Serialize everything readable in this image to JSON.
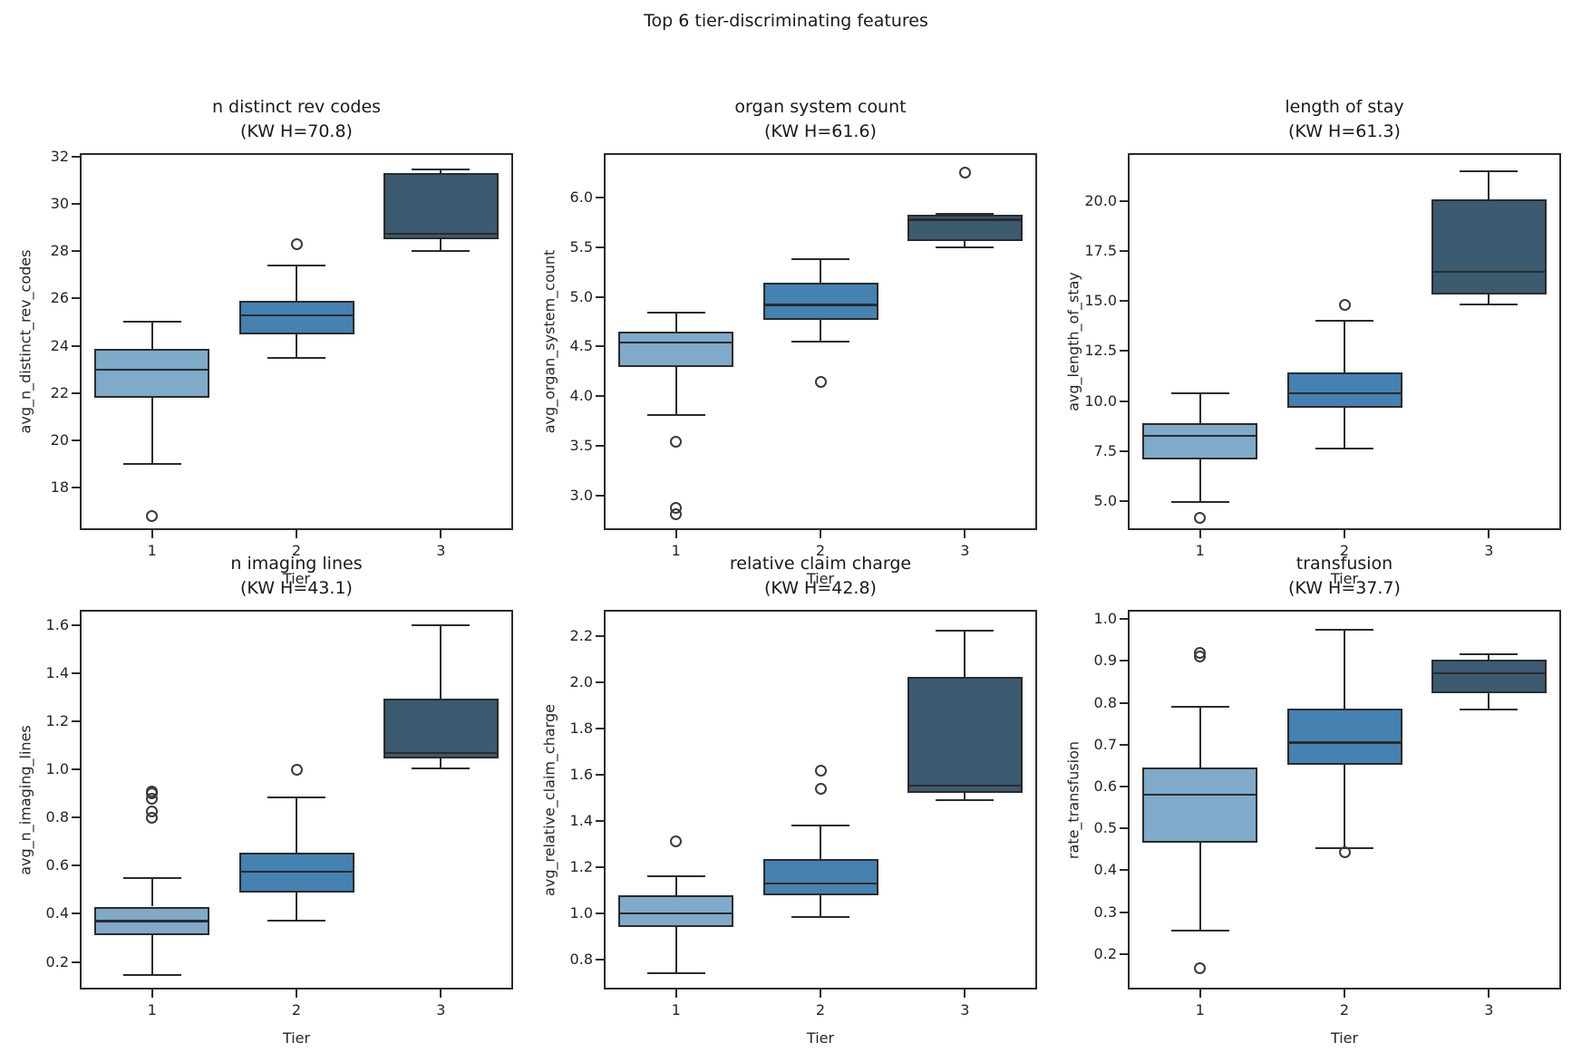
{
  "suptitle": "Top 6 tier-discriminating features",
  "xlabel": "Tier",
  "x_categories": [
    "1",
    "2",
    "3"
  ],
  "colors": {
    "tier_fills": [
      "#7faac9",
      "#4581b1",
      "#3c5a70"
    ],
    "line": "#2b2b2b",
    "text": "#262626",
    "background": "#ffffff"
  },
  "chart_data": [
    {
      "type": "box",
      "title": "n distinct rev codes",
      "subtitle": "(KW H=70.8)",
      "kw_h": 70.8,
      "ylabel": "avg_n_distinct_rev_codes",
      "xlabel": "Tier",
      "categories": [
        "1",
        "2",
        "3"
      ],
      "ytick_values": [
        18,
        20,
        22,
        24,
        26,
        28,
        30,
        32
      ],
      "ytick_labels": [
        "18",
        "20",
        "22",
        "24",
        "26",
        "28",
        "30",
        "32"
      ],
      "ylim": [
        16.2,
        32.15
      ],
      "boxes": [
        {
          "tier": "1",
          "whislo": 19.0,
          "q1": 21.8,
          "med": 23.0,
          "q3": 23.85,
          "whishi": 25.0,
          "outliers": [
            16.8
          ]
        },
        {
          "tier": "2",
          "whislo": 23.5,
          "q1": 24.5,
          "med": 25.3,
          "q3": 25.9,
          "whishi": 27.4,
          "outliers": [
            28.3
          ]
        },
        {
          "tier": "3",
          "whislo": 28.0,
          "q1": 28.5,
          "med": 28.75,
          "q3": 31.3,
          "whishi": 31.45,
          "outliers": []
        }
      ]
    },
    {
      "type": "box",
      "title": "organ system count",
      "subtitle": "(KW H=61.6)",
      "kw_h": 61.6,
      "ylabel": "avg_organ_system_count",
      "xlabel": "Tier",
      "categories": [
        "1",
        "2",
        "3"
      ],
      "ytick_values": [
        3.0,
        3.5,
        4.0,
        4.5,
        5.0,
        5.5,
        6.0
      ],
      "ytick_labels": [
        "3.0",
        "3.5",
        "4.0",
        "4.5",
        "5.0",
        "5.5",
        "6.0"
      ],
      "ylim": [
        2.65,
        6.45
      ],
      "boxes": [
        {
          "tier": "1",
          "whislo": 3.81,
          "q1": 4.29,
          "med": 4.54,
          "q3": 4.65,
          "whishi": 4.84,
          "outliers": [
            2.81,
            2.87,
            3.54
          ]
        },
        {
          "tier": "2",
          "whislo": 4.55,
          "q1": 4.77,
          "med": 4.92,
          "q3": 5.14,
          "whishi": 5.38,
          "outliers": [
            4.14
          ]
        },
        {
          "tier": "3",
          "whislo": 5.5,
          "q1": 5.56,
          "med": 5.78,
          "q3": 5.83,
          "whishi": 5.84,
          "outliers": [
            6.25
          ]
        }
      ]
    },
    {
      "type": "box",
      "title": "length of stay",
      "subtitle": "(KW H=61.3)",
      "kw_h": 61.3,
      "ylabel": "avg_length_of_stay",
      "xlabel": "Tier",
      "categories": [
        "1",
        "2",
        "3"
      ],
      "ytick_values": [
        5.0,
        7.5,
        10.0,
        12.5,
        15.0,
        17.5,
        20.0
      ],
      "ytick_labels": [
        "5.0",
        "7.5",
        "10.0",
        "12.5",
        "15.0",
        "17.5",
        "20.0"
      ],
      "ylim": [
        3.55,
        22.4
      ],
      "boxes": [
        {
          "tier": "1",
          "whislo": 4.95,
          "q1": 7.1,
          "med": 8.25,
          "q3": 8.9,
          "whishi": 10.4,
          "outliers": [
            4.15
          ]
        },
        {
          "tier": "2",
          "whislo": 7.65,
          "q1": 9.65,
          "med": 10.4,
          "q3": 11.45,
          "whishi": 14.0,
          "outliers": [
            14.8
          ]
        },
        {
          "tier": "3",
          "whislo": 14.85,
          "q1": 15.35,
          "med": 16.45,
          "q3": 20.1,
          "whishi": 21.5,
          "outliers": []
        }
      ]
    },
    {
      "type": "box",
      "title": "n imaging lines",
      "subtitle": "(KW H=43.1)",
      "kw_h": 43.1,
      "ylabel": "avg_n_imaging_lines",
      "xlabel": "Tier",
      "categories": [
        "1",
        "2",
        "3"
      ],
      "ytick_values": [
        0.2,
        0.4,
        0.6,
        0.8,
        1.0,
        1.2,
        1.4,
        1.6
      ],
      "ytick_labels": [
        "0.2",
        "0.4",
        "0.6",
        "0.8",
        "1.0",
        "1.2",
        "1.4",
        "1.6"
      ],
      "ylim": [
        0.085,
        1.665
      ],
      "boxes": [
        {
          "tier": "1",
          "whislo": 0.145,
          "q1": 0.31,
          "med": 0.37,
          "q3": 0.43,
          "whishi": 0.55,
          "outliers": [
            0.8,
            0.825,
            0.88,
            0.9,
            0.91
          ]
        },
        {
          "tier": "2",
          "whislo": 0.37,
          "q1": 0.49,
          "med": 0.575,
          "q3": 0.655,
          "whishi": 0.885,
          "outliers": [
            1.0
          ]
        },
        {
          "tier": "3",
          "whislo": 1.005,
          "q1": 1.045,
          "med": 1.07,
          "q3": 1.295,
          "whishi": 1.6,
          "outliers": []
        }
      ]
    },
    {
      "type": "box",
      "title": "relative claim charge",
      "subtitle": "(KW H=42.8)",
      "kw_h": 42.8,
      "ylabel": "avg_relative_claim_charge",
      "xlabel": "Tier",
      "categories": [
        "1",
        "2",
        "3"
      ],
      "ytick_values": [
        0.8,
        1.0,
        1.2,
        1.4,
        1.6,
        1.8,
        2.0,
        2.2
      ],
      "ytick_labels": [
        "0.8",
        "1.0",
        "1.2",
        "1.4",
        "1.6",
        "1.8",
        "2.0",
        "2.2"
      ],
      "ylim": [
        0.67,
        2.315
      ],
      "boxes": [
        {
          "tier": "1",
          "whislo": 0.74,
          "q1": 0.94,
          "med": 1.0,
          "q3": 1.08,
          "whishi": 1.16,
          "outliers": [
            1.31
          ]
        },
        {
          "tier": "2",
          "whislo": 0.985,
          "q1": 1.08,
          "med": 1.13,
          "q3": 1.235,
          "whishi": 1.38,
          "outliers": [
            1.54,
            1.62
          ]
        },
        {
          "tier": "3",
          "whislo": 1.49,
          "q1": 1.52,
          "med": 1.555,
          "q3": 2.025,
          "whishi": 2.225,
          "outliers": []
        }
      ]
    },
    {
      "type": "box",
      "title": "transfusion",
      "subtitle": "(KW H=37.7)",
      "kw_h": 37.7,
      "ylabel": "rate_transfusion",
      "xlabel": "Tier",
      "categories": [
        "1",
        "2",
        "3"
      ],
      "ytick_values": [
        0.2,
        0.3,
        0.4,
        0.5,
        0.6,
        0.7,
        0.8,
        0.9,
        1.0
      ],
      "ytick_labels": [
        "0.2",
        "0.3",
        "0.4",
        "0.5",
        "0.6",
        "0.7",
        "0.8",
        "0.9",
        "1.0"
      ],
      "ylim": [
        0.115,
        1.022
      ],
      "boxes": [
        {
          "tier": "1",
          "whislo": 0.255,
          "q1": 0.465,
          "med": 0.58,
          "q3": 0.645,
          "whishi": 0.79,
          "outliers": [
            0.165,
            0.91,
            0.92
          ]
        },
        {
          "tier": "2",
          "whislo": 0.452,
          "q1": 0.652,
          "med": 0.705,
          "q3": 0.785,
          "whishi": 0.975,
          "outliers": [
            0.443
          ]
        },
        {
          "tier": "3",
          "whislo": 0.783,
          "q1": 0.822,
          "med": 0.87,
          "q3": 0.903,
          "whishi": 0.916,
          "outliers": []
        }
      ]
    }
  ]
}
